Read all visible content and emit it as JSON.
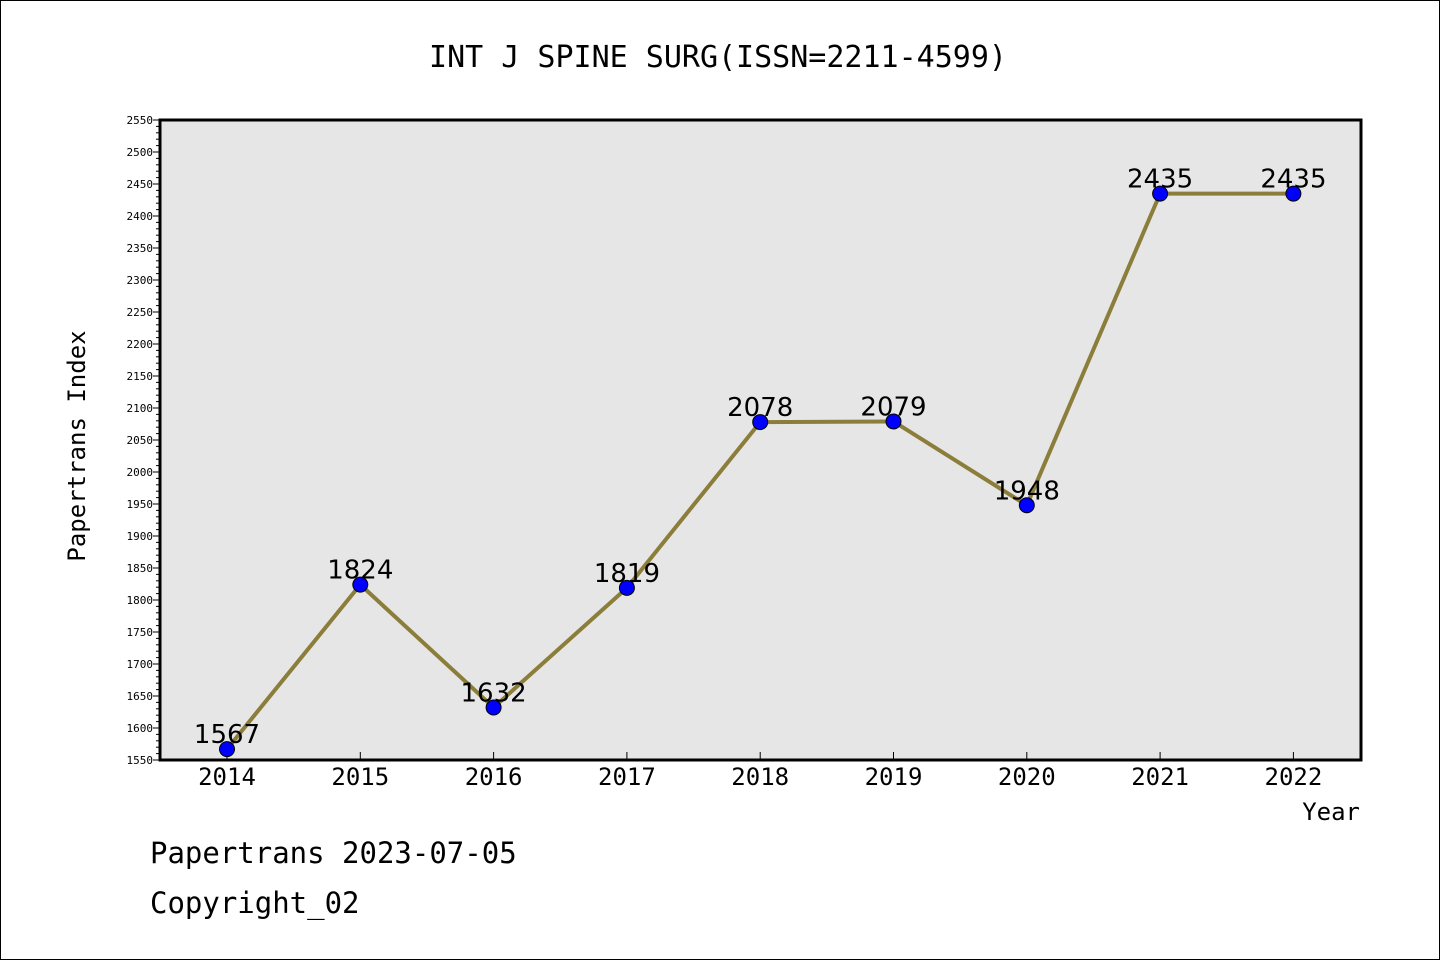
{
  "chart_data": {
    "type": "line",
    "title": "INT J SPINE SURG(ISSN=2211-4599)",
    "xlabel": "Year",
    "ylabel": "Papertrans Index",
    "categories": [
      "2014",
      "2015",
      "2016",
      "2017",
      "2018",
      "2019",
      "2020",
      "2021",
      "2022"
    ],
    "values": [
      1567,
      1824,
      1632,
      1819,
      2078,
      2079,
      1948,
      2435,
      2435
    ],
    "ylim": [
      1550,
      2550
    ],
    "ytick_step": 50,
    "grid": false,
    "legend": "none",
    "colors": {
      "line": "#8b7d3a",
      "marker": "#0000ff",
      "plot_bg": "#e6e6e6"
    }
  },
  "footer": {
    "line1": "Papertrans 2023-07-05",
    "line2": "Copyright_02"
  }
}
